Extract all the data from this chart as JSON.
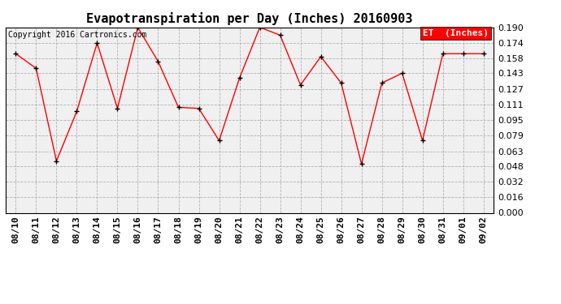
{
  "title": "Evapotranspiration per Day (Inches) 20160903",
  "copyright": "Copyright 2016 Cartronics.com",
  "legend_label": "ET  (Inches)",
  "dates": [
    "08/10",
    "08/11",
    "08/12",
    "08/13",
    "08/14",
    "08/15",
    "08/16",
    "08/17",
    "08/18",
    "08/19",
    "08/20",
    "08/21",
    "08/22",
    "08/23",
    "08/24",
    "08/25",
    "08/26",
    "08/27",
    "08/28",
    "08/29",
    "08/30",
    "08/31",
    "09/01",
    "09/02"
  ],
  "values": [
    0.163,
    0.148,
    0.053,
    0.104,
    0.174,
    0.107,
    0.19,
    0.155,
    0.108,
    0.107,
    0.074,
    0.138,
    0.19,
    0.182,
    0.131,
    0.16,
    0.133,
    0.05,
    0.133,
    0.143,
    0.074,
    0.163,
    0.163,
    0.163
  ],
  "ylim": [
    0.0,
    0.19
  ],
  "yticks": [
    0.0,
    0.016,
    0.032,
    0.048,
    0.063,
    0.079,
    0.095,
    0.111,
    0.127,
    0.143,
    0.158,
    0.174,
    0.19
  ],
  "line_color": "red",
  "marker_color": "black",
  "background_color": "#f0f0f0",
  "grid_color": "#b0b0b0",
  "legend_bg": "red",
  "legend_text_color": "white",
  "fig_bg": "white",
  "title_fontsize": 11,
  "copyright_fontsize": 7,
  "tick_fontsize": 8,
  "legend_fontsize": 8
}
